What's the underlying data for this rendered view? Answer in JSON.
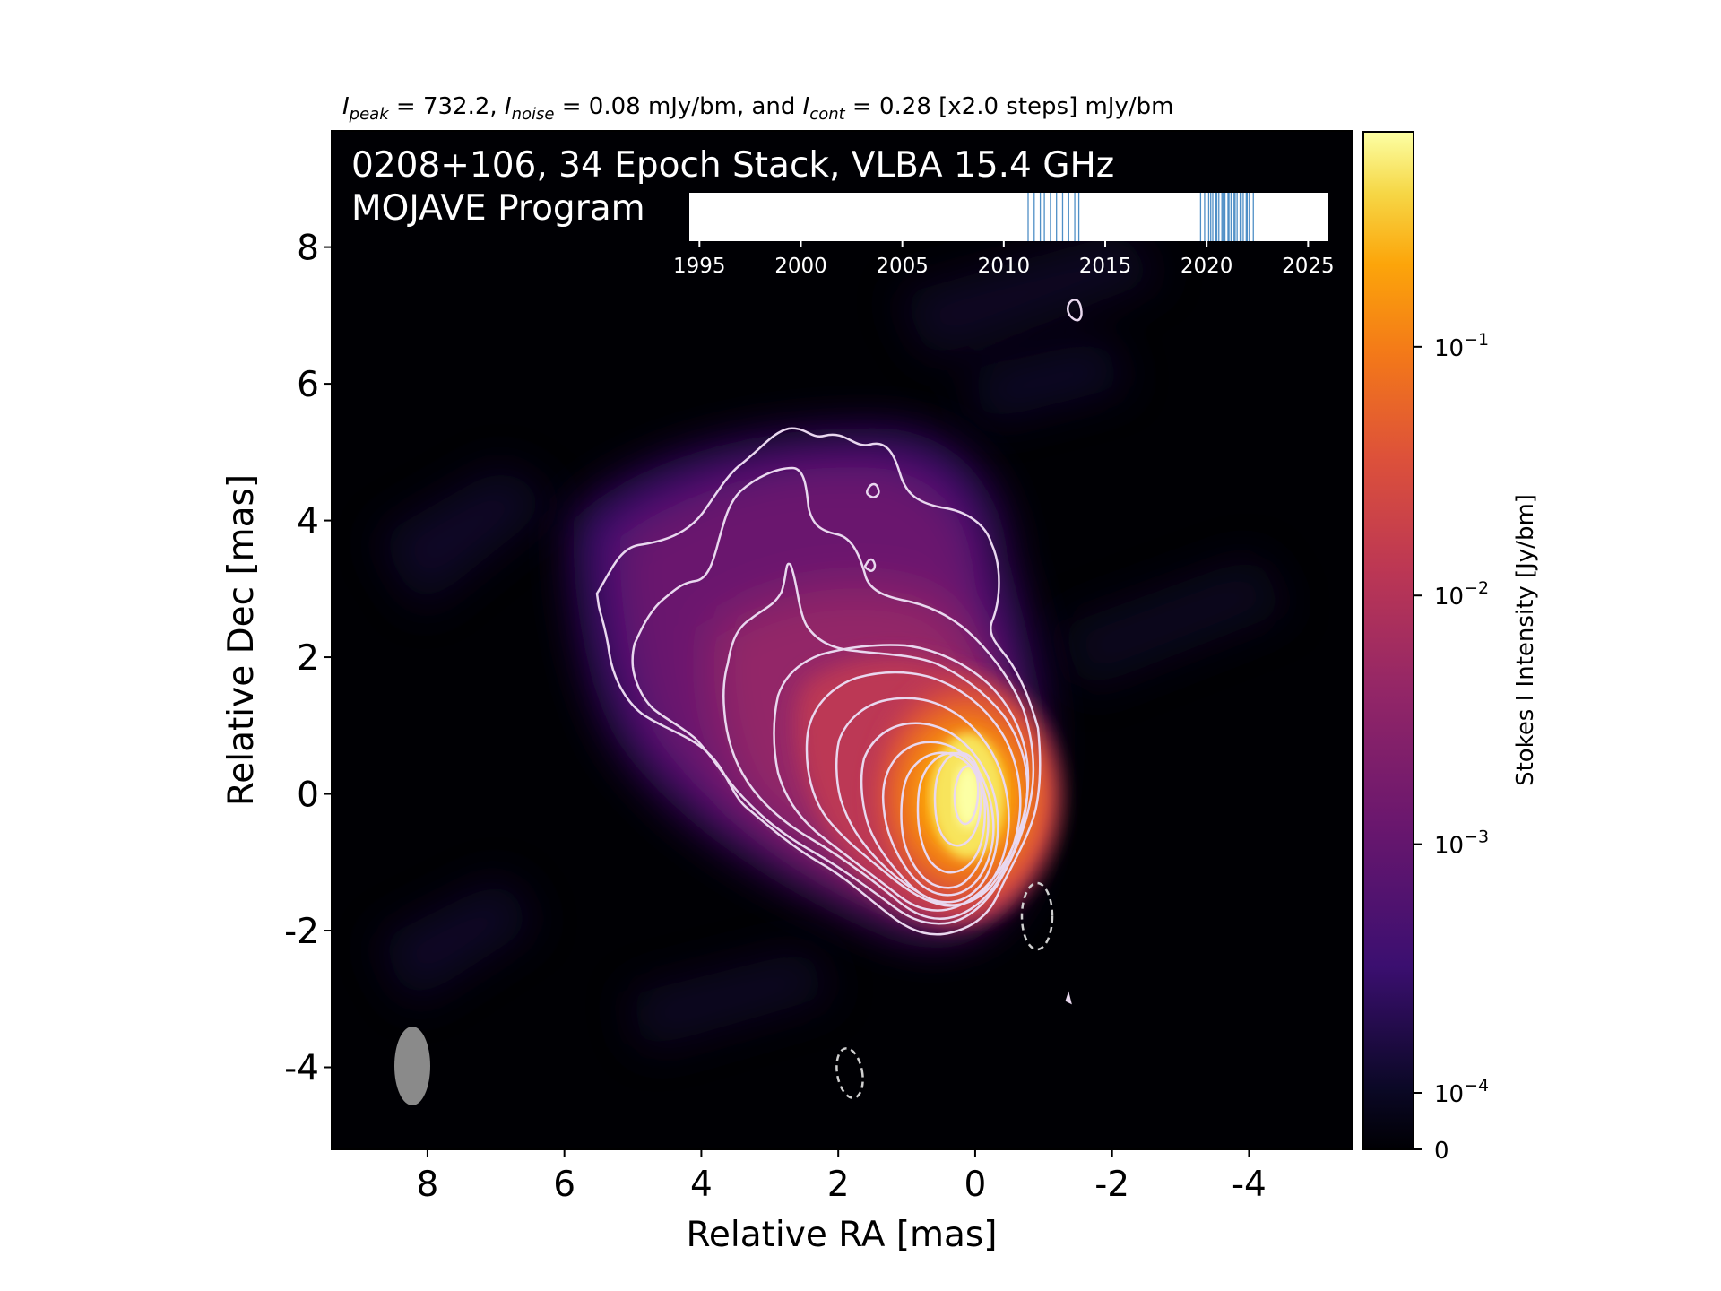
{
  "chart_data": {
    "type": "heatmap",
    "header": {
      "prefix_I1": "I",
      "sub_peak": "peak",
      "peak_text": " = 732.2, ",
      "prefix_I2": "I",
      "sub_noise": "noise",
      "noise_text": " = 0.08 mJy/bm, and ",
      "prefix_I3": "I",
      "sub_cont": "cont",
      "cont_text": " = 0.28 [x2.0 steps] mJy/bm"
    },
    "title_line1": "0208+106, 34 Epoch Stack, VLBA 15.4 GHz",
    "title_line2": "MOJAVE Program",
    "xlabel": "Relative RA [mas]",
    "ylabel": "Relative Dec [mas]",
    "xlim": [
      9.4,
      -5.5
    ],
    "ylim": [
      -5.2,
      9.7
    ],
    "x_ticks": [
      8,
      6,
      4,
      2,
      0,
      -2,
      -4
    ],
    "x_tick_labels": [
      "8",
      "6",
      "4",
      "2",
      "0",
      "-2",
      "-4"
    ],
    "y_ticks": [
      8,
      6,
      4,
      2,
      0,
      -2,
      -4
    ],
    "y_tick_labels": [
      "8",
      "6",
      "4",
      "2",
      "0",
      "-2",
      "-4"
    ],
    "colorbar": {
      "label": "Stokes I Intensity [Jy/bm]",
      "scale": "log",
      "colormap": "inferno",
      "ticks": [
        {
          "value": 0.1,
          "base": "10",
          "exp": "−1"
        },
        {
          "value": 0.01,
          "base": "10",
          "exp": "−2"
        },
        {
          "value": 0.001,
          "base": "10",
          "exp": "−3"
        },
        {
          "value": 0.0001,
          "base": "10",
          "exp": "−4"
        },
        {
          "value": 0,
          "base": "0",
          "exp": ""
        }
      ]
    },
    "timeline": {
      "ticks": [
        1995,
        2000,
        2005,
        2010,
        2015,
        2020,
        2025
      ],
      "tick_labels": [
        "1995",
        "2000",
        "2005",
        "2010",
        "2015",
        "2020",
        "2025"
      ],
      "xlim": [
        1994.5,
        2026.0
      ],
      "epochs": [
        2011.2,
        2011.5,
        2011.8,
        2012.0,
        2012.3,
        2012.6,
        2012.9,
        2013.2,
        2013.5,
        2013.7,
        2019.7,
        2019.9,
        2020.1,
        2020.3,
        2020.45,
        2020.6,
        2020.75,
        2020.9,
        2021.05,
        2021.2,
        2021.35,
        2021.5,
        2021.65,
        2021.8,
        2021.95,
        2022.1,
        2022.3,
        2020.2,
        2020.5,
        2020.8,
        2021.1,
        2021.4,
        2021.7,
        2022.0
      ],
      "epoch_color": "#4f8fc6"
    },
    "beam": {
      "center": [
        8.0,
        -3.95
      ],
      "major_mas": 1.15,
      "minor_mas": 0.5,
      "pa_deg": 0
    },
    "core_position": [
      0,
      0
    ],
    "negative_contours": [
      {
        "center": [
          -0.95,
          -1.75
        ],
        "rx_mas": 0.22,
        "ry_mas": 0.5
      },
      {
        "center": [
          1.75,
          -4.0
        ],
        "rx_mas": 0.18,
        "ry_mas": 0.37
      }
    ],
    "contour_levels_mJy": [
      0.28,
      0.56,
      1.12,
      2.24,
      4.48,
      8.96,
      17.92,
      35.84,
      71.68,
      143.36,
      286.72,
      573.44
    ],
    "colors": {
      "background": "#000004",
      "contour": "#e9d8ef",
      "beam": "#8a8a8a",
      "frame": "#000000"
    }
  }
}
